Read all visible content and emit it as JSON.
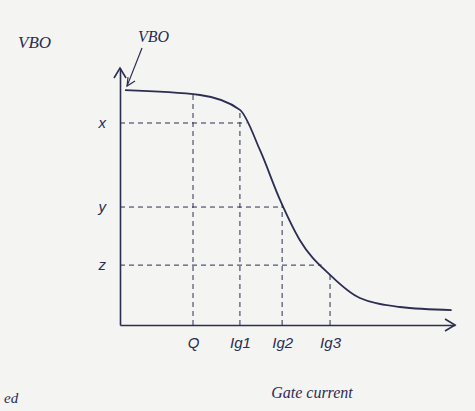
{
  "chart_data": {
    "type": "line",
    "y_label": "VBO",
    "x_label": "Gate current",
    "annotations": [
      {
        "text": "VBO"
      },
      {
        "text": "ed"
      }
    ],
    "x": [
      1.5,
      23.9,
      35.8,
      41.8,
      47.8,
      53.7,
      62.7,
      71.6,
      83.6,
      99
    ],
    "values": [
      91.4,
      89.5,
      83.7,
      68,
      48.6,
      33,
      19.5,
      10.5,
      7,
      5.8
    ],
    "color": "#2b2d52",
    "line_style": "solid",
    "marker": "none",
    "grid": false,
    "xlim": [
      0,
      100
    ],
    "ylim": [
      0,
      100
    ],
    "xticks": [
      {
        "value": 21.8,
        "label": "Q"
      },
      {
        "value": 35.8,
        "label": "Ig1"
      },
      {
        "value": 48.4,
        "label": "Ig2"
      },
      {
        "value": 62.7,
        "label": "Ig3"
      }
    ],
    "yticks": [
      {
        "value": 23.3,
        "label": "z"
      },
      {
        "value": 45.9,
        "label": "y"
      },
      {
        "value": 78.6,
        "label": "x"
      }
    ]
  }
}
